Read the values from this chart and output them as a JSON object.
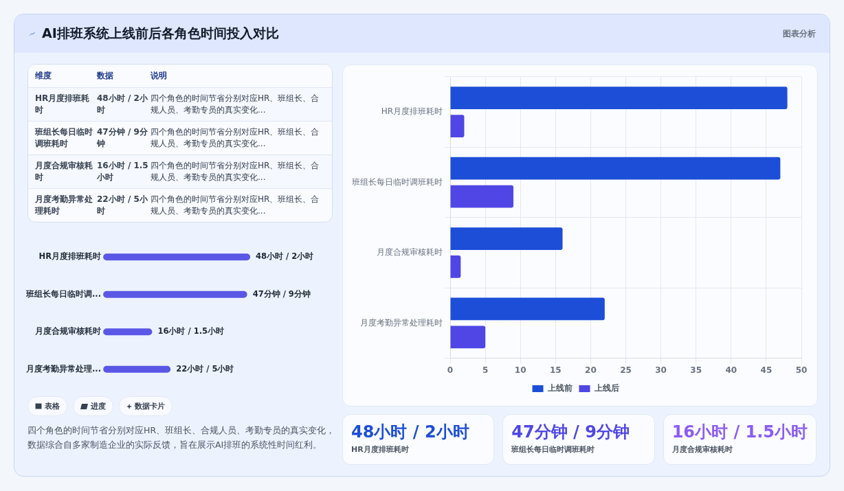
{
  "chart_data": [
    {
      "type": "other",
      "title": "AI排班系统上线前后各角色时间投入对比",
      "annotations": [
        "图表分析"
      ]
    },
    {
      "type": "other",
      "annotations": [
        "维度",
        "数据",
        "说明",
        "HR月度排班耗时",
        "48小时 / 2小时",
        "四个角色的时间节省分别对应HR、班组长、合规人员、考勤专员的真实变化...",
        "班组长每日临时调班耗时",
        "47分钟 / 9分钟",
        "四个角色的时间节省分别对应HR、班组长、合规人员、考勤专员的真实变化...",
        "月度合规审核耗时",
        "16小时 / 1.5小时",
        "四个角色的时间节省分别对应HR、班组长、合规人员、考勤专员的真实变化...",
        "月度考勤异常处理耗时",
        "22小时 / 5小时",
        "四个角色的时间节省分别对应HR、班组长、合规人员、考勤专员的真实变化..."
      ]
    },
    {
      "type": "bar",
      "orientation": "horizontal",
      "tick_labels": "y",
      "categories": [
        "HR月度排班耗时",
        "班组长每日临时调...",
        "月度合规审核耗时",
        "月度考勤异常处理..."
      ],
      "values": [
        48,
        47,
        16,
        22
      ],
      "value_labels": [
        "48小时 / 2小时",
        "47分钟 / 9分钟",
        "16小时 / 1.5小时",
        "22小时 / 5小时"
      ],
      "color": "#5a57e6"
    },
    {
      "type": "other",
      "annotations": [
        "表格",
        "进度",
        "数据卡片",
        "四个角色的时间节省分别对应HR、班组长、合规人员、考勤专员的真实变化，数据综合自多家制造企业的实际反馈，旨在展示AI排班的系统性时间红利。"
      ]
    },
    {
      "type": "bar",
      "orientation": "horizontal",
      "categories": [
        "HR月度排班耗时",
        "班组长每日临时调班耗时",
        "月度合规审核耗时",
        "月度考勤异常处理耗时"
      ],
      "series": [
        {
          "name": "上线前",
          "color": "#1d4ed8",
          "values": [
            48,
            47,
            16,
            22
          ]
        },
        {
          "name": "上线后",
          "color": "#4f46e5",
          "values": [
            2,
            9,
            1.5,
            5
          ]
        }
      ],
      "xlim": [
        0,
        50
      ],
      "xticks": [
        0,
        5,
        10,
        15,
        20,
        25,
        30,
        35,
        40,
        45,
        50
      ],
      "grid": true,
      "legend": "bottom"
    },
    {
      "type": "other",
      "annotations": [
        "48小时 / 2小时",
        "HR月度排班耗时",
        "47分钟 / 9分钟",
        "班组长每日临时调班耗时",
        "16小时 / 1.5小时",
        "月度合规审核耗时"
      ],
      "colors": [
        "#1d4ed8",
        "#4f46e5",
        "#8b5cf6"
      ]
    }
  ]
}
